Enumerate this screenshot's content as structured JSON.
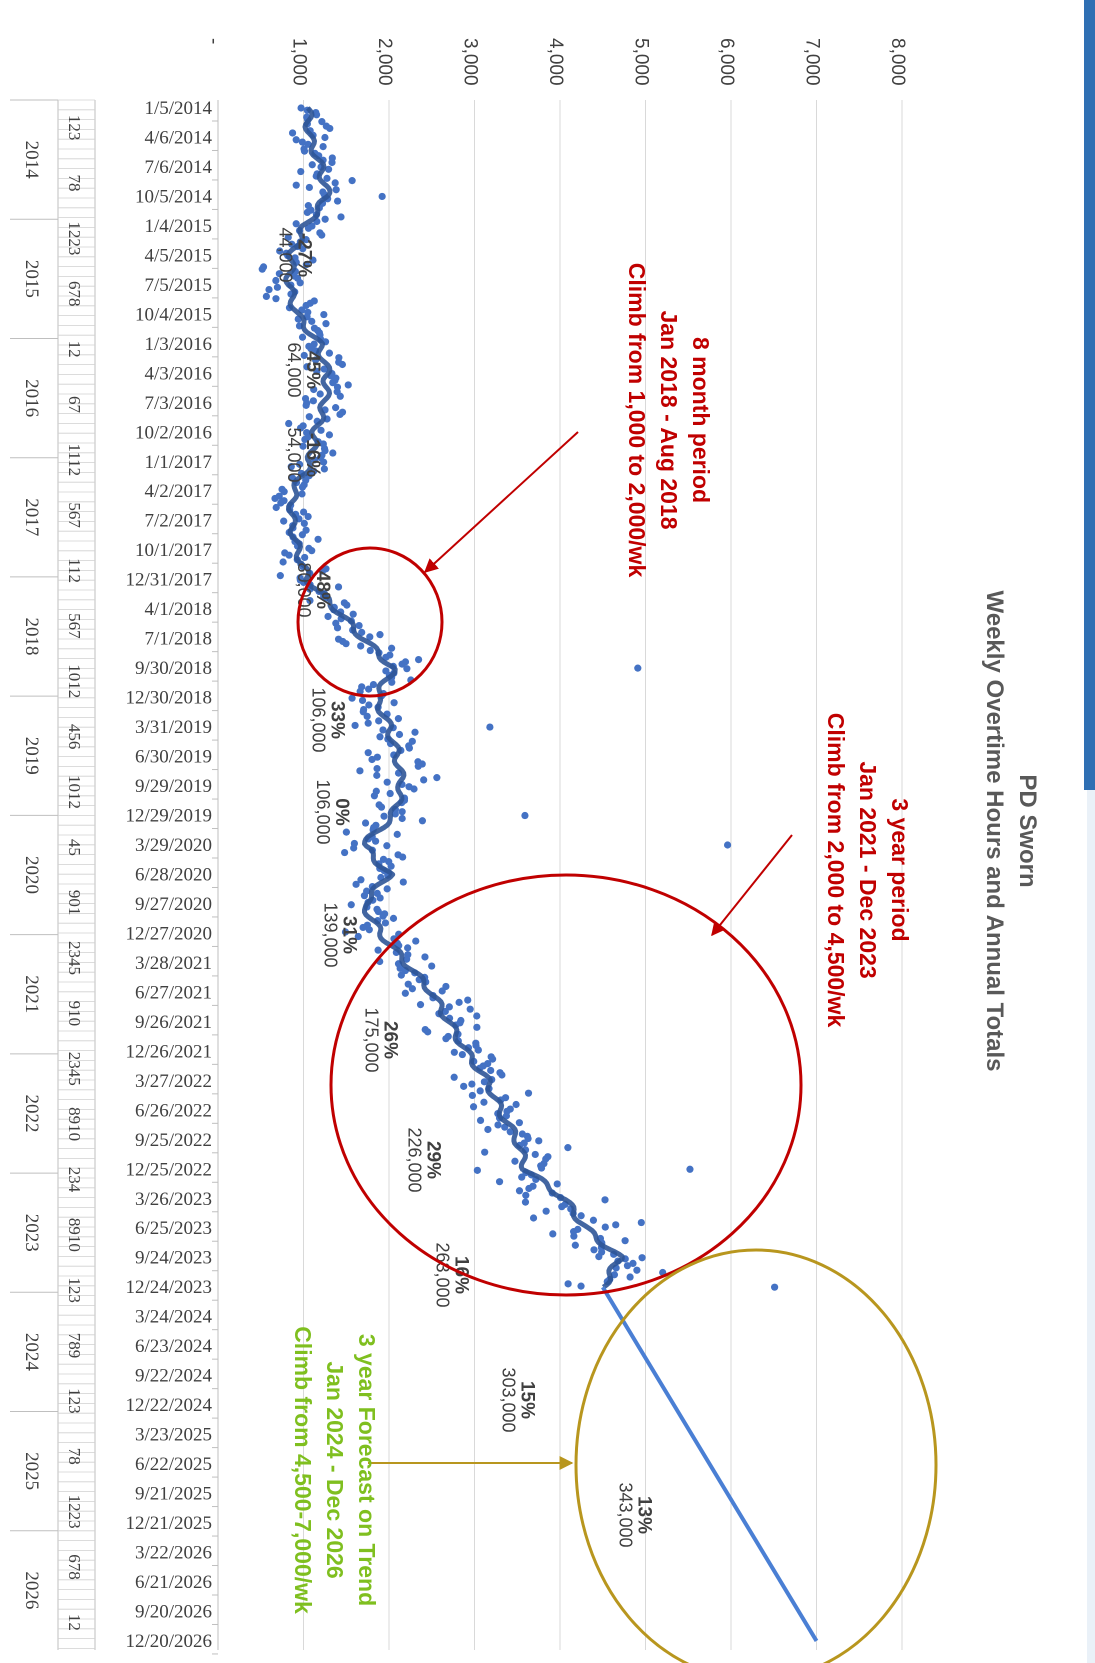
{
  "chart_data": {
    "type": "scatter",
    "title": "PD Sworn",
    "subtitle": "Weekly Overtime Hours and Annual Totals",
    "orientation": "rotated-90-clockwise",
    "xlabel": "",
    "ylabel": "",
    "ylim": [
      0,
      8000
    ],
    "y_ticks": [
      0,
      1000,
      2000,
      3000,
      4000,
      5000,
      6000,
      7000,
      8000
    ],
    "y_tick_labels": [
      "-",
      "1,000",
      "2,000",
      "3,000",
      "4,000",
      "5,000",
      "6,000",
      "7,000",
      "8,000"
    ],
    "date_tick_labels": [
      "1/5/2014",
      "4/6/2014",
      "7/6/2014",
      "10/5/2014",
      "1/4/2015",
      "4/5/2015",
      "7/5/2015",
      "10/4/2015",
      "1/3/2016",
      "4/3/2016",
      "7/3/2016",
      "10/2/2016",
      "1/1/2017",
      "4/2/2017",
      "7/2/2017",
      "10/1/2017",
      "12/31/2017",
      "4/1/2018",
      "7/1/2018",
      "9/30/2018",
      "12/30/2018",
      "3/31/2019",
      "6/30/2019",
      "9/29/2019",
      "12/29/2019",
      "3/29/2020",
      "6/28/2020",
      "9/27/2020",
      "12/27/2020",
      "3/28/2021",
      "6/27/2021",
      "9/26/2021",
      "12/26/2021",
      "3/27/2022",
      "6/26/2022",
      "9/25/2022",
      "12/25/2022",
      "3/26/2023",
      "6/25/2023",
      "9/24/2023",
      "12/24/2023",
      "3/24/2024",
      "6/23/2024",
      "9/22/2024",
      "12/22/2024",
      "3/23/2025",
      "6/22/2025",
      "9/21/2025",
      "12/21/2025",
      "3/22/2026",
      "6/21/2026",
      "9/20/2026",
      "12/20/2026"
    ],
    "month_group_labels": [
      "123",
      "78",
      "1223",
      "678",
      "12",
      "67",
      "1112",
      "567",
      "112",
      "567",
      "1012",
      "456",
      "1012",
      "45",
      "901",
      "2345",
      "910",
      "2345",
      "8910",
      "234",
      "8910",
      "123",
      "789",
      "123",
      "78",
      "1223",
      "678",
      "12"
    ],
    "year_labels": [
      "2014",
      "2015",
      "2016",
      "2017",
      "2018",
      "2019",
      "2020",
      "2021",
      "2022",
      "2023",
      "2024",
      "2025",
      "2026"
    ],
    "trend_points": [
      [
        "1/5/2014",
        1050
      ],
      [
        "4/6/2014",
        1070
      ],
      [
        "7/6/2014",
        1200
      ],
      [
        "10/5/2014",
        1280
      ],
      [
        "1/4/2015",
        1020
      ],
      [
        "4/5/2015",
        860
      ],
      [
        "7/5/2015",
        830
      ],
      [
        "10/4/2015",
        920
      ],
      [
        "1/3/2016",
        1180
      ],
      [
        "4/3/2016",
        1280
      ],
      [
        "7/3/2016",
        1250
      ],
      [
        "10/2/2016",
        1140
      ],
      [
        "1/1/2017",
        1080
      ],
      [
        "4/2/2017",
        880
      ],
      [
        "7/2/2017",
        860
      ],
      [
        "10/1/2017",
        930
      ],
      [
        "12/31/2017",
        1050
      ],
      [
        "4/1/2018",
        1380
      ],
      [
        "7/1/2018",
        1700
      ],
      [
        "9/30/2018",
        2050
      ],
      [
        "12/30/2018",
        1850
      ],
      [
        "3/31/2019",
        2000
      ],
      [
        "6/30/2019",
        2100
      ],
      [
        "9/29/2019",
        2150
      ],
      [
        "12/29/2019",
        2050
      ],
      [
        "3/29/2020",
        1700
      ],
      [
        "6/28/2020",
        2000
      ],
      [
        "9/27/2020",
        1700
      ],
      [
        "12/27/2020",
        1900
      ],
      [
        "3/28/2021",
        2200
      ],
      [
        "6/27/2021",
        2500
      ],
      [
        "9/26/2021",
        2700
      ],
      [
        "12/26/2021",
        2900
      ],
      [
        "3/27/2022",
        3150
      ],
      [
        "6/26/2022",
        3300
      ],
      [
        "9/25/2022",
        3500
      ],
      [
        "12/25/2022",
        3600
      ],
      [
        "3/26/2023",
        4050
      ],
      [
        "6/25/2023",
        4300
      ],
      [
        "9/24/2023",
        4700
      ],
      [
        "12/24/2023",
        4500
      ]
    ],
    "forecast_line": [
      [
        "12/24/2023",
        4500
      ],
      [
        "12/20/2026",
        7000
      ]
    ],
    "annual_totals": [
      {
        "year": "2015",
        "pct": "-27%",
        "total": "44,000"
      },
      {
        "year": "2016",
        "pct": "45%",
        "total": "64,000"
      },
      {
        "year": "2017",
        "pct": "-16%",
        "total": "54,000"
      },
      {
        "year": "2018",
        "pct": "48%",
        "total": "80,000"
      },
      {
        "year": "2019",
        "pct": "33%",
        "total": "106,000"
      },
      {
        "year": "2020",
        "pct": "0%",
        "total": "106,000"
      },
      {
        "year": "2021",
        "pct": "31%",
        "total": "139,000"
      },
      {
        "year": "2022",
        "pct": "26%",
        "total": "175,000"
      },
      {
        "year": "2023",
        "pct": "29%",
        "total": "226,000"
      },
      {
        "year": "2024",
        "pct": "16%",
        "total": "263,000"
      },
      {
        "year": "2025",
        "pct": "15%",
        "total": "303,000"
      },
      {
        "year": "2026",
        "pct": "13%",
        "total": "343,000"
      }
    ],
    "annotations": [
      {
        "lines": [
          "8 month period",
          "Jan 2018 - Aug 2018",
          "Climb from 1,000 to 2,000/wk"
        ],
        "color": "#c00000"
      },
      {
        "lines": [
          "3 year period",
          "Jan 2021 - Dec 2023",
          "Climb from 2,000 to 4,500/wk"
        ],
        "color": "#c00000"
      },
      {
        "lines": [
          "3 year Forecast on Trend",
          "Jan 2024 - Dec 2026",
          "Climb from 4,500-7,000/wk"
        ],
        "color": "#7fbf1f"
      }
    ],
    "colors": {
      "points": "#4472c4",
      "trend": "#2f5597",
      "forecast": "#4a7fd4",
      "red": "#c00000",
      "green": "#7fbf1f",
      "olive": "#b8961e",
      "grid": "#d9d9d9",
      "axis_text": "#404040"
    },
    "grid": true,
    "legend": "none"
  }
}
